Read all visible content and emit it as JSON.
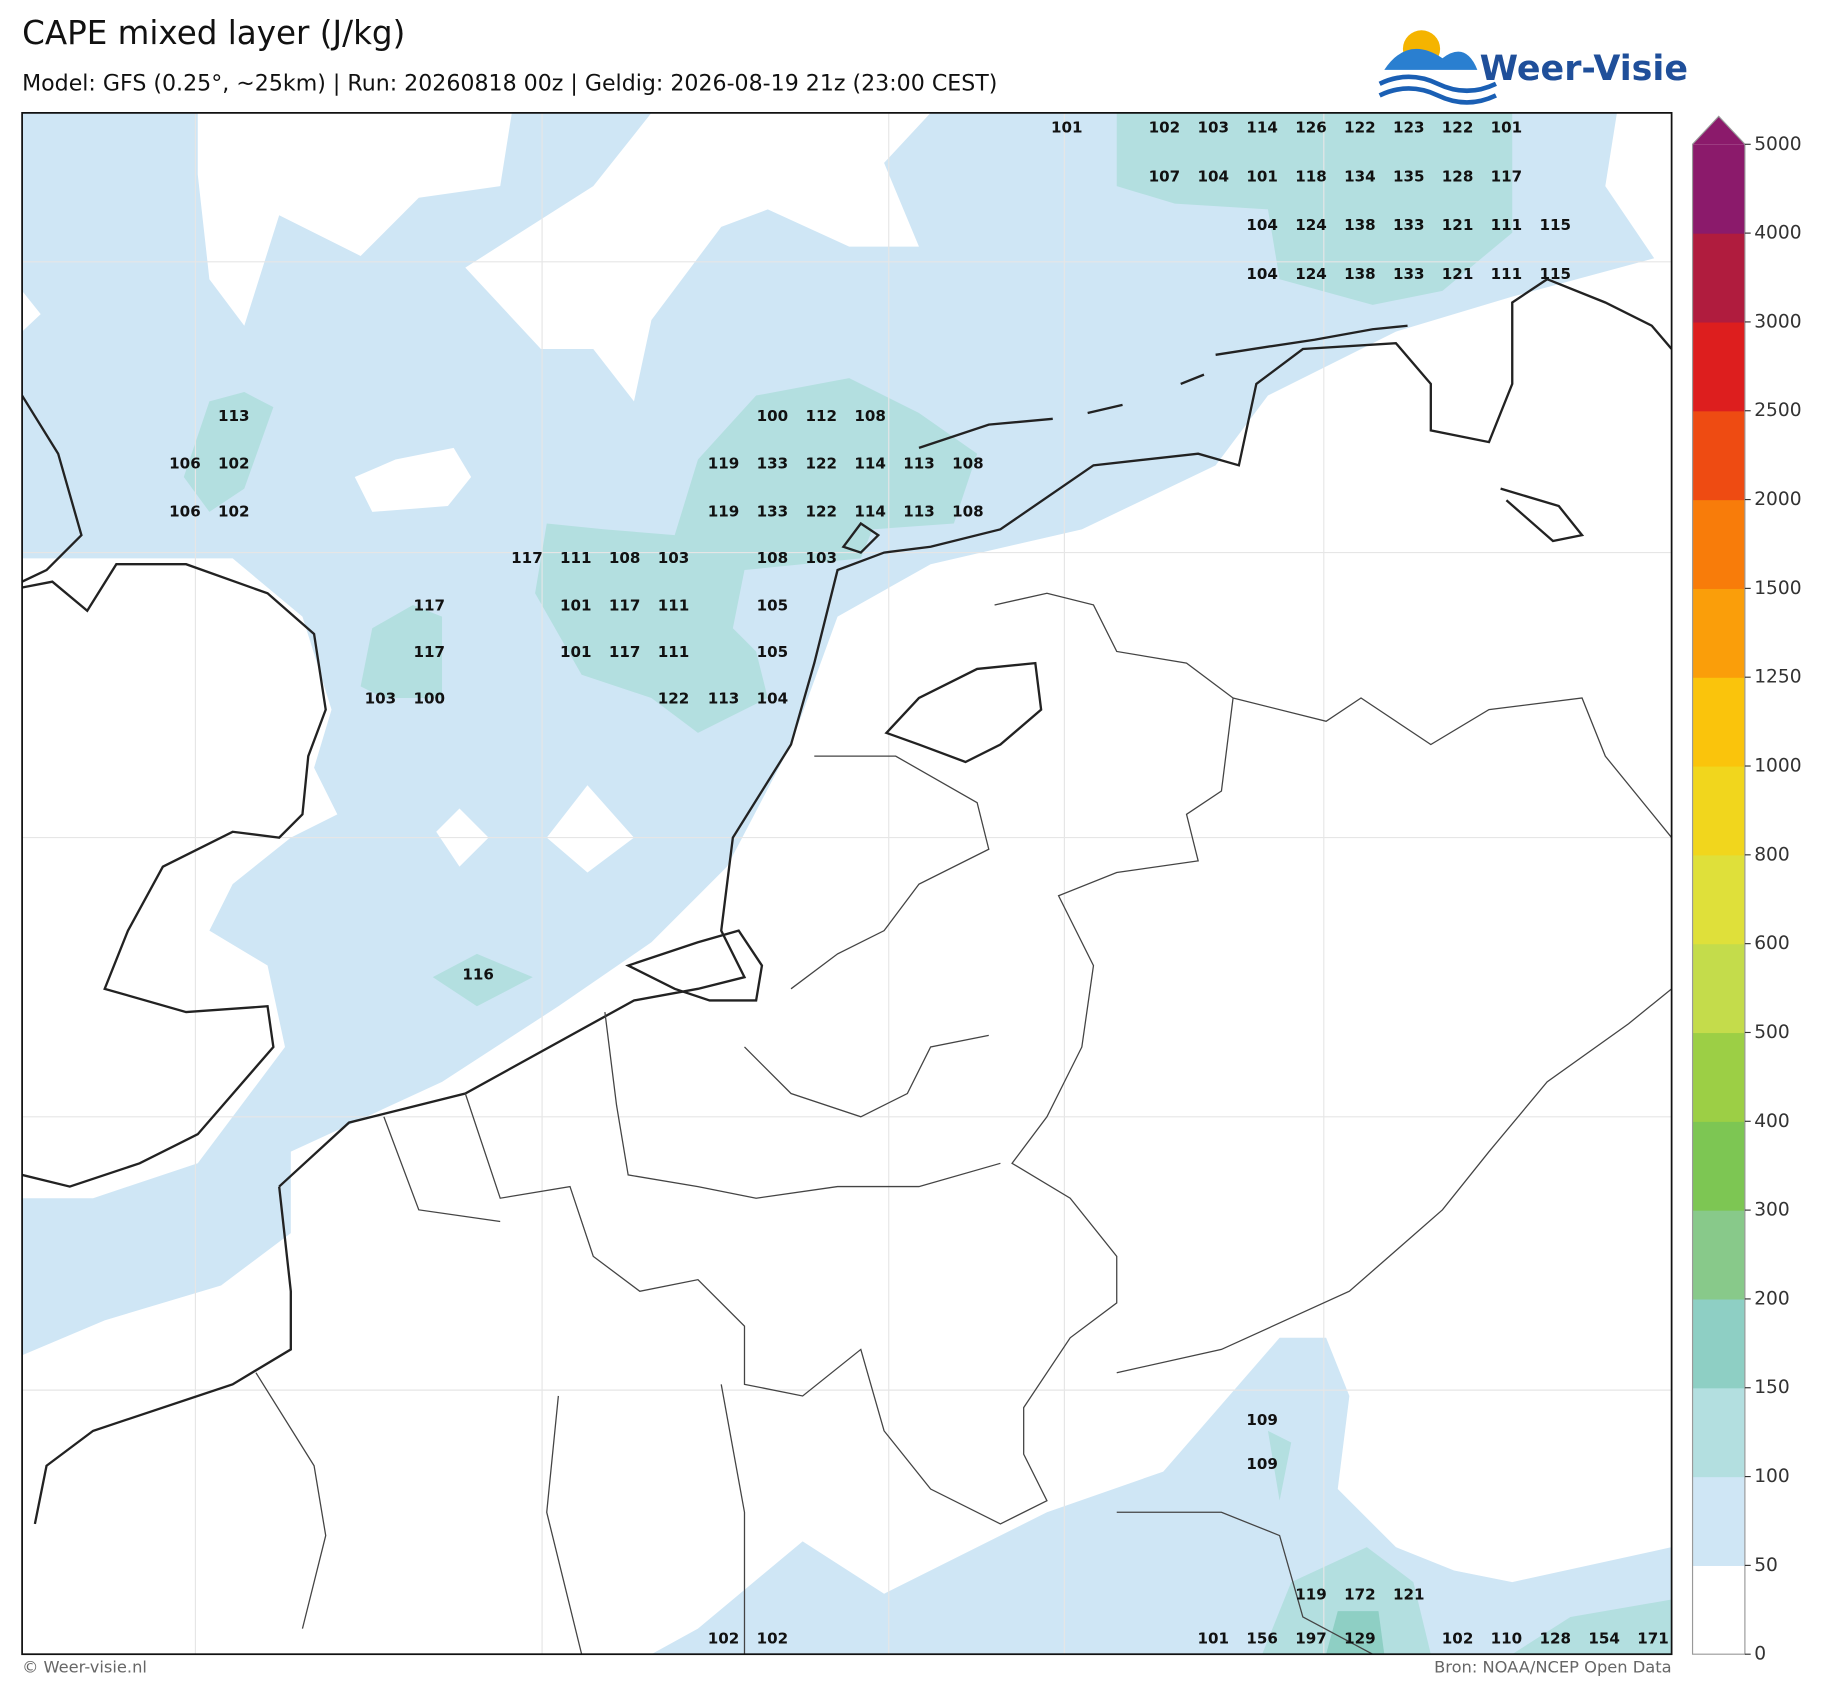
{
  "header": {
    "title": "CAPE mixed layer (J/kg)",
    "subtitle": "Model: GFS (0.25°, ~25km)  |  Run: 20260818 00z  |  Geldig: 2026-08-19 21z (23:00 CEST)",
    "logo": "Weer-Visie"
  },
  "colorbar": {
    "levels": [
      0,
      50,
      100,
      150,
      200,
      300,
      400,
      500,
      600,
      800,
      1000,
      1250,
      1500,
      2000,
      2500,
      3000,
      4000,
      5000
    ],
    "colors": [
      "#ffffff",
      "#cfe6f5",
      "#b3dfe0",
      "#8ecfc4",
      "#88c98a",
      "#7dc653",
      "#9ccf45",
      "#c4dc4b",
      "#dfe03a",
      "#f1d61d",
      "#fac40c",
      "#fa9e0a",
      "#f87c0a",
      "#ee4b12",
      "#dd1e1e",
      "#b01c3e",
      "#8b1a6b"
    ],
    "extend_color": "#8b1a6b"
  },
  "cape_labels": [
    101,
    102,
    103,
    114,
    126,
    122,
    123,
    122,
    101,
    107,
    104,
    101,
    118,
    134,
    135,
    128,
    117,
    104,
    124,
    138,
    133,
    121,
    111,
    115,
    104,
    124,
    138,
    133,
    121,
    111,
    115,
    113,
    100,
    112,
    108,
    106,
    102,
    119,
    133,
    122,
    114,
    113,
    108,
    106,
    102,
    119,
    133,
    122,
    114,
    113,
    108,
    117,
    111,
    108,
    103,
    108,
    103,
    117,
    101,
    117,
    111,
    105,
    117,
    101,
    117,
    111,
    105,
    103,
    100,
    122,
    113,
    104,
    116,
    109,
    109,
    119,
    172,
    121,
    102,
    102,
    101,
    156,
    197,
    129,
    102,
    110,
    128,
    154,
    171
  ],
  "footer": {
    "left": "© Weer-visie.nl",
    "right": "Bron: NOAA/NCEP Open Data"
  }
}
